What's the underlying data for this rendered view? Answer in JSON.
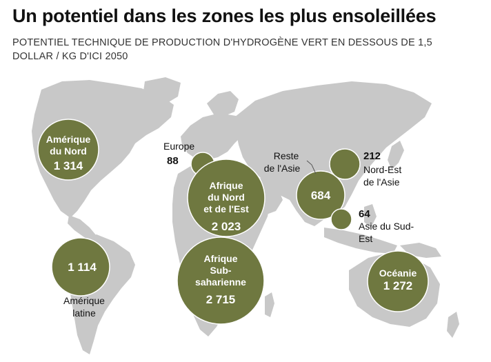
{
  "header": {
    "title": "Un potentiel dans les zones les plus ensoleillées",
    "subtitle": "POTENTIEL TECHNIQUE DE PRODUCTION D'HYDROGÈNE VERT EN DESSOUS DE 1,5 DOLLAR / KG D'ICI 2050"
  },
  "colors": {
    "bubble": "#6f7840",
    "land": "#c8c8c8",
    "background": "#ffffff"
  },
  "regions": [
    {
      "id": "amerique_nord",
      "label_lines": [
        "Amérique",
        "du Nord"
      ],
      "value": 1314,
      "value_text": "1 314"
    },
    {
      "id": "amerique_latine",
      "label_lines": [
        "Amérique",
        "latine"
      ],
      "value": 1114,
      "value_text": "1 114"
    },
    {
      "id": "europe",
      "label_lines": [
        "Europe"
      ],
      "value": 88,
      "value_text": "88"
    },
    {
      "id": "afrique_nord_est",
      "label_lines": [
        "Afrique",
        "du Nord",
        "et de l'Est"
      ],
      "value": 2023,
      "value_text": "2 023"
    },
    {
      "id": "afrique_sub",
      "label_lines": [
        "Afrique",
        "Sub-",
        "saharienne"
      ],
      "value": 2715,
      "value_text": "2 715"
    },
    {
      "id": "reste_asie",
      "label_lines": [
        "Reste",
        "de l'Asie"
      ],
      "value": 684,
      "value_text": "684"
    },
    {
      "id": "nord_est_asie",
      "label_lines": [
        "Nord-Est",
        "de l'Asie"
      ],
      "value": 212,
      "value_text": "212"
    },
    {
      "id": "asie_sud_est",
      "label_lines": [
        "Asie du Sud-",
        "Est"
      ],
      "value": 64,
      "value_text": "64"
    },
    {
      "id": "oceanie",
      "label_lines": [
        "Océanie"
      ],
      "value": 1272,
      "value_text": "1 272"
    }
  ]
}
